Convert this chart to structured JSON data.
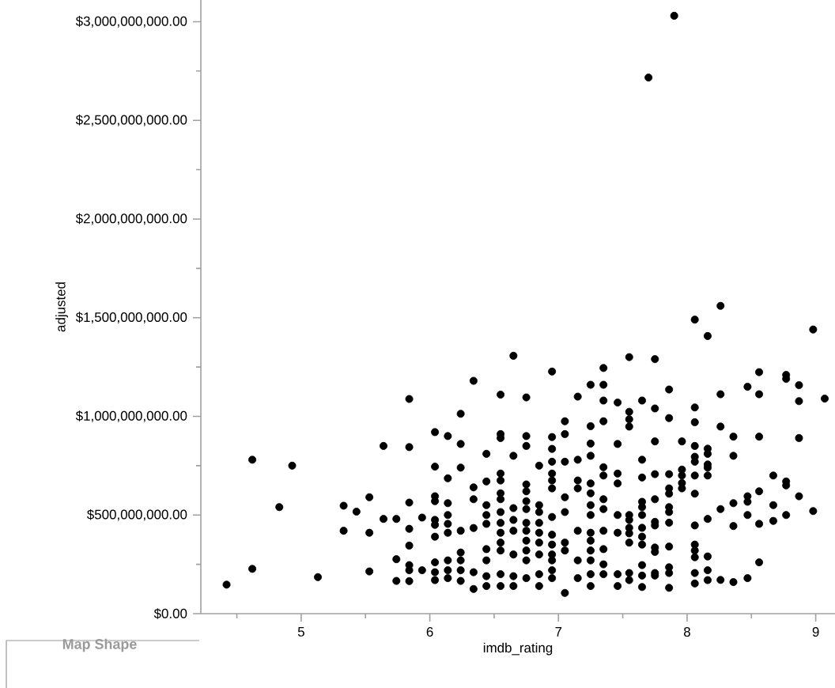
{
  "chart_data": {
    "type": "scatter",
    "xlabel": "imdb_rating",
    "ylabel": "adjusted",
    "color": "#000000",
    "marker": "circle",
    "xlim": [
      4.22,
      9.15
    ],
    "ylim": [
      0,
      3110000000
    ],
    "xticks": [
      {
        "value": 4.5,
        "label": null
      },
      5,
      {
        "value": 5.5,
        "label": null
      },
      6,
      {
        "value": 6.5,
        "label": null
      },
      7,
      {
        "value": 7.5,
        "label": null
      },
      8,
      {
        "value": 8.5,
        "label": null
      },
      9
    ],
    "yticks": [
      {
        "value": 0,
        "label": "$0.00"
      },
      {
        "value": 250000000,
        "label": null
      },
      {
        "value": 500000000,
        "label": "$500,000,000.00"
      },
      {
        "value": 750000000,
        "label": null
      },
      {
        "value": 1000000000,
        "label": "$1,000,000,000.00"
      },
      {
        "value": 1250000000,
        "label": null
      },
      {
        "value": 1500000000,
        "label": "$1,500,000,000.00"
      },
      {
        "value": 1750000000,
        "label": null
      },
      {
        "value": 2000000000,
        "label": "$2,000,000,000.00"
      },
      {
        "value": 2250000000,
        "label": null
      },
      {
        "value": 2500000000,
        "label": "$2,500,000,000.00"
      },
      {
        "value": 2750000000,
        "label": null
      },
      {
        "value": 3000000000,
        "label": "$3,000,000,000.00"
      }
    ],
    "annotations": [
      "Map Shape"
    ],
    "x": [
      4.42,
      4.62,
      4.62,
      4.83,
      4.93,
      5.13,
      5.33,
      5.33,
      5.43,
      5.53,
      5.53,
      5.53,
      5.64,
      5.64,
      5.74,
      5.74,
      5.74,
      5.84,
      5.84,
      5.84,
      5.84,
      5.84,
      5.84,
      5.84,
      5.84,
      5.94,
      5.94,
      6.04,
      6.04,
      6.04,
      6.04,
      6.04,
      6.04,
      6.04,
      6.04,
      6.04,
      6.04,
      6.14,
      6.14,
      6.14,
      6.14,
      6.14,
      6.14,
      6.14,
      6.14,
      6.14,
      6.24,
      6.24,
      6.24,
      6.24,
      6.24,
      6.24,
      6.24,
      6.24,
      6.34,
      6.34,
      6.34,
      6.34,
      6.34,
      6.34,
      6.44,
      6.44,
      6.44,
      6.44,
      6.44,
      6.44,
      6.44,
      6.44,
      6.44,
      6.55,
      6.55,
      6.55,
      6.55,
      6.55,
      6.55,
      6.55,
      6.55,
      6.55,
      6.55,
      6.55,
      6.55,
      6.55,
      6.55,
      6.65,
      6.65,
      6.65,
      6.65,
      6.65,
      6.65,
      6.65,
      6.65,
      6.75,
      6.75,
      6.75,
      6.75,
      6.75,
      6.75,
      6.75,
      6.75,
      6.75,
      6.75,
      6.75,
      6.75,
      6.75,
      6.85,
      6.85,
      6.85,
      6.85,
      6.85,
      6.85,
      6.85,
      6.85,
      6.85,
      6.95,
      6.95,
      6.95,
      6.95,
      6.95,
      6.95,
      6.95,
      6.95,
      6.95,
      6.95,
      6.95,
      6.95,
      6.95,
      6.95,
      7.05,
      7.05,
      7.05,
      7.05,
      7.05,
      7.05,
      7.05,
      7.05,
      7.15,
      7.15,
      7.15,
      7.15,
      7.15,
      7.15,
      7.15,
      7.25,
      7.25,
      7.25,
      7.25,
      7.25,
      7.25,
      7.25,
      7.25,
      7.25,
      7.25,
      7.25,
      7.25,
      7.25,
      7.25,
      7.35,
      7.35,
      7.35,
      7.35,
      7.35,
      7.35,
      7.35,
      7.35,
      7.35,
      7.35,
      7.35,
      7.35,
      7.46,
      7.46,
      7.46,
      7.46,
      7.46,
      7.46,
      7.46,
      7.46,
      7.55,
      7.55,
      7.55,
      7.55,
      7.55,
      7.55,
      7.55,
      7.55,
      7.55,
      7.55,
      7.55,
      7.65,
      7.65,
      7.65,
      7.65,
      7.65,
      7.65,
      7.65,
      7.65,
      7.65,
      7.65,
      7.65,
      7.65,
      7.7,
      7.75,
      7.75,
      7.75,
      7.75,
      7.75,
      7.75,
      7.75,
      7.75,
      7.75,
      7.75,
      7.75,
      7.86,
      7.86,
      7.86,
      7.86,
      7.86,
      7.86,
      7.86,
      7.86,
      7.86,
      7.86,
      7.86,
      7.86,
      7.9,
      7.96,
      7.96,
      7.96,
      7.96,
      7.96,
      8.06,
      8.06,
      8.06,
      8.06,
      8.06,
      8.06,
      8.06,
      8.06,
      8.06,
      8.06,
      8.06,
      8.06,
      8.06,
      8.06,
      8.16,
      8.16,
      8.16,
      8.16,
      8.16,
      8.16,
      8.16,
      8.16,
      8.16,
      8.16,
      8.26,
      8.26,
      8.26,
      8.26,
      8.26,
      8.36,
      8.36,
      8.36,
      8.36,
      8.36,
      8.47,
      8.47,
      8.47,
      8.47,
      8.47,
      8.56,
      8.56,
      8.56,
      8.56,
      8.56,
      8.56,
      8.67,
      8.67,
      8.67,
      8.77,
      8.77,
      8.77,
      8.77,
      8.77,
      8.87,
      8.87,
      8.87,
      8.87,
      8.98,
      8.98,
      9.07
    ],
    "values": [
      147000000.0,
      780000000.0,
      227000000.0,
      540000000.0,
      750000000.0,
      185000000.0,
      547000000.0,
      420000000.0,
      517000000.0,
      590000000.0,
      410000000.0,
      214000000.0,
      850000000.0,
      480000000.0,
      480000000.0,
      276000000.0,
      166000000.0,
      1088000000.0,
      844000000.0,
      563000000.0,
      430000000.0,
      345000000.0,
      246000000.0,
      220000000.0,
      165000000.0,
      487000000.0,
      220000000.0,
      920000000.0,
      745000000.0,
      595000000.0,
      570000000.0,
      475000000.0,
      450000000.0,
      390000000.0,
      260000000.0,
      210000000.0,
      170000000.0,
      900000000.0,
      686000000.0,
      560000000.0,
      500000000.0,
      455000000.0,
      410000000.0,
      270000000.0,
      220000000.0,
      180000000.0,
      1013000000.0,
      860000000.0,
      740000000.0,
      420000000.0,
      310000000.0,
      270000000.0,
      220000000.0,
      166000000.0,
      1180000000.0,
      640000000.0,
      580000000.0,
      434000000.0,
      210000000.0,
      125000000.0,
      810000000.0,
      670000000.0,
      550000000.0,
      500000000.0,
      455000000.0,
      327000000.0,
      270000000.0,
      190000000.0,
      140000000.0,
      1110000000.0,
      910000000.0,
      890000000.0,
      710000000.0,
      675000000.0,
      610000000.0,
      580000000.0,
      515000000.0,
      460000000.0,
      410000000.0,
      360000000.0,
      320000000.0,
      200000000.0,
      140000000.0,
      1307000000.0,
      800000000.0,
      535000000.0,
      475000000.0,
      420000000.0,
      300000000.0,
      190000000.0,
      140000000.0,
      1096000000.0,
      900000000.0,
      850000000.0,
      655000000.0,
      620000000.0,
      570000000.0,
      530000000.0,
      460000000.0,
      420000000.0,
      370000000.0,
      320000000.0,
      270000000.0,
      180000000.0,
      750000000.0,
      550000000.0,
      515000000.0,
      460000000.0,
      410000000.0,
      360000000.0,
      300000000.0,
      200000000.0,
      140000000.0,
      1227000000.0,
      895000000.0,
      835000000.0,
      770000000.0,
      710000000.0,
      675000000.0,
      635000000.0,
      490000000.0,
      400000000.0,
      350000000.0,
      300000000.0,
      270000000.0,
      220000000.0,
      180000000.0,
      975000000.0,
      910000000.0,
      770000000.0,
      590000000.0,
      515000000.0,
      360000000.0,
      320000000.0,
      105000000.0,
      1100000000.0,
      780000000.0,
      675000000.0,
      635000000.0,
      420000000.0,
      270000000.0,
      180000000.0,
      1160000000.0,
      950000000.0,
      862000000.0,
      800000000.0,
      660000000.0,
      610000000.0,
      550000000.0,
      500000000.0,
      410000000.0,
      370000000.0,
      320000000.0,
      270000000.0,
      200000000.0,
      140000000.0,
      1245000000.0,
      1160000000.0,
      1080000000.0,
      975000000.0,
      742000000.0,
      700000000.0,
      580000000.0,
      530000000.0,
      420000000.0,
      327000000.0,
      250000000.0,
      200000000.0,
      1070000000.0,
      860000000.0,
      710000000.0,
      660000000.0,
      500000000.0,
      410000000.0,
      200000000.0,
      140000000.0,
      1300000000.0,
      1023000000.0,
      985000000.0,
      948000000.0,
      500000000.0,
      475000000.0,
      435000000.0,
      407000000.0,
      360000000.0,
      206000000.0,
      170000000.0,
      1080000000.0,
      780000000.0,
      690000000.0,
      567000000.0,
      540000000.0,
      500000000.0,
      435000000.0,
      390000000.0,
      350000000.0,
      246000000.0,
      193000000.0,
      135000000.0,
      2717000000.0,
      1290000000.0,
      1040000000.0,
      873000000.0,
      707000000.0,
      580000000.0,
      465000000.0,
      447000000.0,
      335000000.0,
      313000000.0,
      206000000.0,
      193000000.0,
      1136000000.0,
      991000000.0,
      707000000.0,
      635000000.0,
      608000000.0,
      540000000.0,
      515000000.0,
      461000000.0,
      340000000.0,
      235000000.0,
      206000000.0,
      131000000.0,
      3030000000.0,
      873000000.0,
      730000000.0,
      700000000.0,
      662000000.0,
      635000000.0,
      1490000000.0,
      1045000000.0,
      970000000.0,
      850000000.0,
      795000000.0,
      770000000.0,
      700000000.0,
      608000000.0,
      447000000.0,
      350000000.0,
      320000000.0,
      286000000.0,
      206000000.0,
      153000000.0,
      1407000000.0,
      836000000.0,
      810000000.0,
      756000000.0,
      740000000.0,
      700000000.0,
      480000000.0,
      290000000.0,
      220000000.0,
      170000000.0,
      1560000000.0,
      1112000000.0,
      948000000.0,
      530000000.0,
      171000000.0,
      897000000.0,
      800000000.0,
      560000000.0,
      444000000.0,
      160000000.0,
      1150000000.0,
      595000000.0,
      567000000.0,
      500000000.0,
      180000000.0,
      1224000000.0,
      1112000000.0,
      897000000.0,
      620000000.0,
      455000000.0,
      260000000.0,
      700000000.0,
      550000000.0,
      470000000.0,
      1210000000.0,
      1190000000.0,
      670000000.0,
      650000000.0,
      500000000.0,
      1158000000.0,
      1077000000.0,
      890000000.0,
      595000000.0,
      1440000000.0,
      520000000.0,
      1090000000.0
    ]
  }
}
